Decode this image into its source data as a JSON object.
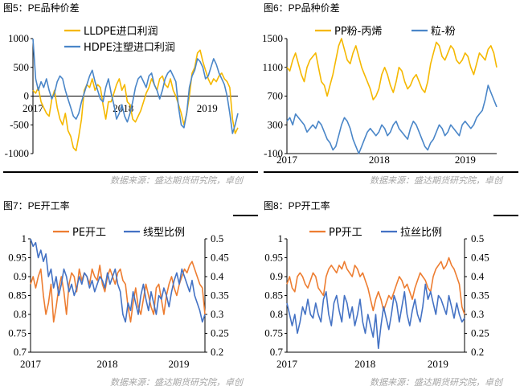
{
  "panels": [
    {
      "title": "图5：PE品种价差",
      "source": "数据来源：盛达期货研究院，卓创",
      "chart_data": {
        "type": "line",
        "xlabel": "",
        "ylabel": "",
        "ylim": [
          -1000,
          1000
        ],
        "yticks": [
          -1000,
          -500,
          0,
          500,
          1000
        ],
        "xticks": [
          "2017",
          "2018",
          "2019"
        ],
        "grid": false,
        "legend": "top-center",
        "series": [
          {
            "name": "LLDPE进口利润",
            "color": "#F5B800",
            "values": [
              100,
              50,
              150,
              -100,
              -200,
              -300,
              -350,
              -50,
              100,
              -200,
              -400,
              -500,
              -300,
              -600,
              -700,
              -900,
              -950,
              -700,
              -400,
              100,
              200,
              150,
              300,
              100,
              200,
              150,
              -150,
              -400,
              -100,
              -100,
              50,
              200,
              300,
              100,
              200,
              -100,
              -150,
              -400,
              -450,
              -350,
              -250,
              -100,
              50,
              150,
              300,
              200,
              100,
              300,
              350,
              200,
              150,
              300,
              100,
              0,
              -150,
              -300,
              -500,
              -300,
              0,
              400,
              500,
              750,
              800,
              600,
              450,
              300,
              200,
              300,
              250,
              350,
              400,
              300,
              250,
              150,
              -400,
              -650,
              -550
            ]
          },
          {
            "name": "HDPE注塑进口利润",
            "color": "#4A86C8",
            "values": [
              1000,
              300,
              100,
              250,
              150,
              300,
              100,
              -50,
              50,
              250,
              350,
              300,
              100,
              -50,
              -200,
              -350,
              -400,
              -300,
              -100,
              50,
              200,
              350,
              450,
              250,
              100,
              -50,
              -100,
              150,
              300,
              50,
              -150,
              -400,
              -300,
              -150,
              -350,
              -450,
              -300,
              -100,
              150,
              300,
              350,
              250,
              150,
              350,
              400,
              200,
              100,
              -50,
              100,
              300,
              400,
              450,
              350,
              250,
              -200,
              -500,
              -550,
              -300,
              150,
              350,
              450,
              650,
              600,
              500,
              300,
              350,
              500,
              650,
              550,
              400,
              300,
              200,
              0,
              -300,
              -650,
              -500,
              -300
            ]
          }
        ]
      }
    },
    {
      "title": "图6：PP品种价差",
      "source": "数据来源：盛达期货研究院，卓创",
      "chart_data": {
        "type": "line",
        "xlabel": "",
        "ylabel": "",
        "ylim": [
          -100,
          1500
        ],
        "yticks": [
          -100,
          300,
          700,
          1100,
          1500
        ],
        "xticks": [
          "2017",
          "2018",
          "2019"
        ],
        "grid": false,
        "legend": "top-center",
        "series": [
          {
            "name": "PP粉-丙烯",
            "color": "#F5B800",
            "values": [
              1100,
              1050,
              1200,
              1300,
              1150,
              1000,
              900,
              1100,
              1200,
              1250,
              1300,
              1100,
              900,
              850,
              700,
              850,
              1000,
              1200,
              1400,
              1500,
              1350,
              1200,
              1150,
              1300,
              1400,
              1250,
              1100,
              1000,
              900,
              800,
              650,
              700,
              800,
              1000,
              1100,
              1000,
              850,
              750,
              900,
              1100,
              1050,
              900,
              800,
              850,
              950,
              1000,
              900,
              800,
              750,
              900,
              1150,
              1300,
              1450,
              1400,
              1250,
              1200,
              1300,
              1400,
              1350,
              1200,
              1150,
              1200,
              1300,
              1250,
              1100,
              1000,
              1150,
              1300,
              1250,
              1200,
              1350,
              1400,
              1300,
              1100
            ]
          },
          {
            "name": "粒-粉",
            "color": "#4A86C8",
            "values": [
              350,
              400,
              300,
              450,
              400,
              350,
              300,
              200,
              250,
              300,
              250,
              350,
              300,
              200,
              100,
              50,
              -50,
              0,
              150,
              300,
              400,
              350,
              250,
              100,
              0,
              -100,
              0,
              100,
              200,
              250,
              200,
              150,
              200,
              300,
              250,
              150,
              200,
              300,
              350,
              250,
              200,
              150,
              100,
              250,
              350,
              300,
              200,
              100,
              0,
              -50,
              50,
              100,
              200,
              300,
              250,
              150,
              200,
              300,
              250,
              200,
              150,
              300,
              350,
              300,
              250,
              300,
              400,
              450,
              500,
              650,
              850,
              750,
              650,
              550
            ]
          }
        ]
      }
    },
    {
      "title": "图7：PE开工率",
      "source": "数据来源：盛达期货研究院，卓创",
      "chart_data": {
        "type": "line",
        "xlabel": "",
        "ylabel": "",
        "ylim": [
          0.7,
          1.0
        ],
        "yticks": [
          0.7,
          0.75,
          0.8,
          0.85,
          0.9,
          0.95,
          1
        ],
        "y2lim": [
          0.2,
          0.5
        ],
        "y2ticks": [
          0.2,
          0.25,
          0.3,
          0.35,
          0.4,
          0.45,
          0.5
        ],
        "xticks": [
          "2017",
          "2018",
          "2019"
        ],
        "grid": false,
        "legend": "top-center",
        "series": [
          {
            "name": "PE开工",
            "color": "#ED7D31",
            "axis": "left",
            "values": [
              0.88,
              0.9,
              0.87,
              0.9,
              0.92,
              0.85,
              0.8,
              0.83,
              0.88,
              0.78,
              0.82,
              0.87,
              0.9,
              0.86,
              0.8,
              0.88,
              0.91,
              0.9,
              0.86,
              0.92,
              0.89,
              0.91,
              0.9,
              0.88,
              0.92,
              0.9,
              0.89,
              0.93,
              0.88,
              0.86,
              0.9,
              0.92,
              0.9,
              0.88,
              0.91,
              0.92,
              0.89,
              0.88,
              0.82,
              0.78,
              0.83,
              0.87,
              0.82,
              0.8,
              0.84,
              0.88,
              0.85,
              0.82,
              0.8,
              0.87,
              0.88,
              0.84,
              0.8,
              0.85,
              0.88,
              0.9,
              0.87,
              0.85,
              0.88,
              0.9,
              0.92,
              0.91,
              0.93,
              0.94,
              0.92,
              0.9,
              0.88,
              0.87,
              0.8
            ]
          },
          {
            "name": "线型比例",
            "color": "#4472C4",
            "axis": "right",
            "values": [
              0.5,
              0.48,
              0.49,
              0.45,
              0.47,
              0.44,
              0.46,
              0.4,
              0.42,
              0.37,
              0.4,
              0.35,
              0.38,
              0.42,
              0.4,
              0.36,
              0.38,
              0.35,
              0.37,
              0.4,
              0.38,
              0.41,
              0.4,
              0.37,
              0.39,
              0.36,
              0.38,
              0.4,
              0.39,
              0.37,
              0.41,
              0.38,
              0.4,
              0.42,
              0.38,
              0.36,
              0.3,
              0.28,
              0.33,
              0.31,
              0.36,
              0.33,
              0.3,
              0.35,
              0.38,
              0.34,
              0.31,
              0.36,
              0.33,
              0.3,
              0.35,
              0.34,
              0.37,
              0.35,
              0.32,
              0.36,
              0.39,
              0.41,
              0.38,
              0.42,
              0.4,
              0.38,
              0.36,
              0.39,
              0.35,
              0.33,
              0.31,
              0.28,
              0.3
            ]
          }
        ]
      }
    },
    {
      "title": "图8：PP开工率",
      "source": "数据来源：盛达期货研究院，卓创",
      "chart_data": {
        "type": "line",
        "xlabel": "",
        "ylabel": "",
        "ylim": [
          0.7,
          1.0
        ],
        "yticks": [
          0.7,
          0.75,
          0.8,
          0.85,
          0.9,
          0.95,
          1
        ],
        "y2lim": [
          0.2,
          0.5
        ],
        "y2ticks": [
          0.2,
          0.25,
          0.3,
          0.35,
          0.4,
          0.45,
          0.5
        ],
        "xticks": [
          "2017",
          "2018",
          "2019"
        ],
        "grid": false,
        "legend": "top-center",
        "series": [
          {
            "name": "PP开工",
            "color": "#ED7D31",
            "axis": "left",
            "values": [
              0.88,
              0.9,
              0.87,
              0.86,
              0.9,
              0.91,
              0.9,
              0.88,
              0.87,
              0.89,
              0.91,
              0.9,
              0.87,
              0.86,
              0.85,
              0.9,
              0.92,
              0.93,
              0.92,
              0.91,
              0.93,
              0.92,
              0.94,
              0.92,
              0.91,
              0.9,
              0.93,
              0.92,
              0.9,
              0.91,
              0.89,
              0.87,
              0.84,
              0.81,
              0.84,
              0.86,
              0.84,
              0.81,
              0.83,
              0.85,
              0.84,
              0.86,
              0.88,
              0.9,
              0.89,
              0.87,
              0.88,
              0.86,
              0.84,
              0.87,
              0.89,
              0.91,
              0.9,
              0.89,
              0.87,
              0.86,
              0.9,
              0.92,
              0.93,
              0.94,
              0.92,
              0.93,
              0.95,
              0.93,
              0.92,
              0.9,
              0.88,
              0.82,
              0.8
            ]
          },
          {
            "name": "拉丝比例",
            "color": "#4472C4",
            "axis": "right",
            "values": [
              0.33,
              0.3,
              0.27,
              0.3,
              0.25,
              0.28,
              0.32,
              0.3,
              0.34,
              0.3,
              0.29,
              0.33,
              0.3,
              0.28,
              0.34,
              0.36,
              0.3,
              0.27,
              0.33,
              0.35,
              0.31,
              0.28,
              0.35,
              0.33,
              0.29,
              0.32,
              0.27,
              0.3,
              0.34,
              0.28,
              0.25,
              0.3,
              0.27,
              0.24,
              0.3,
              0.21,
              0.27,
              0.32,
              0.29,
              0.26,
              0.3,
              0.35,
              0.33,
              0.28,
              0.32,
              0.36,
              0.3,
              0.27,
              0.31,
              0.34,
              0.3,
              0.28,
              0.32,
              0.38,
              0.34,
              0.36,
              0.33,
              0.3,
              0.35,
              0.34,
              0.32,
              0.3,
              0.35,
              0.32,
              0.29,
              0.33,
              0.3,
              0.28,
              0.29
            ]
          }
        ]
      }
    }
  ]
}
